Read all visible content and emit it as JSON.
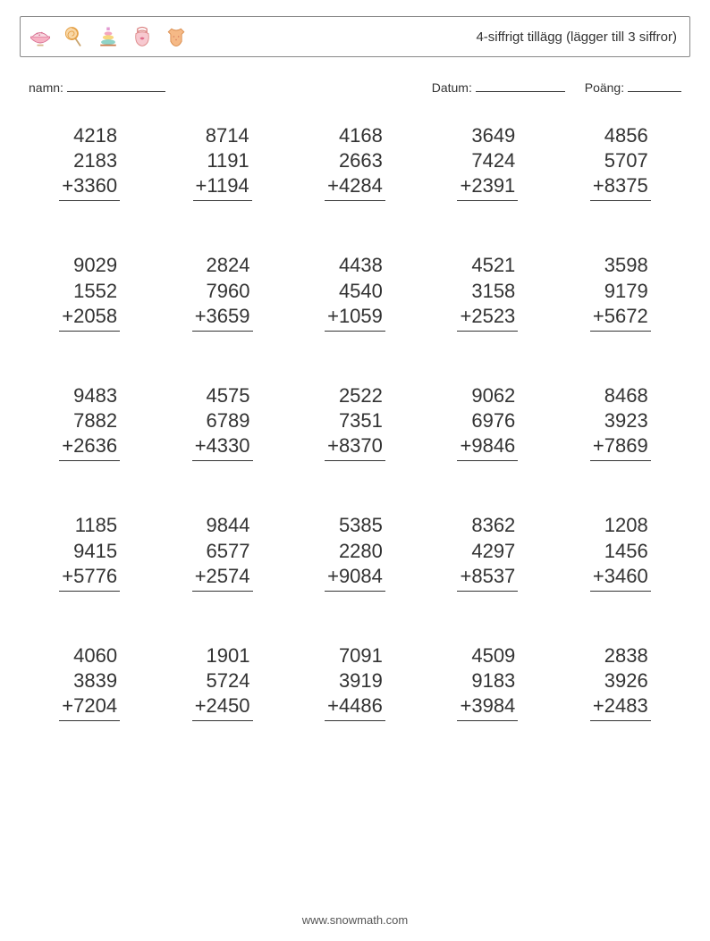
{
  "header": {
    "title": "4-siffrigt tillägg (lägger till 3 siffror)",
    "border_color": "#888888",
    "icon_names": [
      "bowl-icon",
      "lollipop-icon",
      "ring-stack-icon",
      "bib-icon",
      "onesie-icon"
    ]
  },
  "labels": {
    "name": "namn:",
    "date": "Datum:",
    "score": "Poäng:"
  },
  "operator": "+",
  "colors": {
    "text": "#333333",
    "background": "#ffffff",
    "rule": "#333333"
  },
  "typography": {
    "title_fontsize_pt": 11,
    "number_fontsize_pt": 17,
    "label_fontsize_pt": 10
  },
  "grid": {
    "rows": 5,
    "cols": 5
  },
  "problems": [
    {
      "a": 4218,
      "b": 2183,
      "c": 3360
    },
    {
      "a": 8714,
      "b": 1191,
      "c": 1194
    },
    {
      "a": 4168,
      "b": 2663,
      "c": 4284
    },
    {
      "a": 3649,
      "b": 7424,
      "c": 2391
    },
    {
      "a": 4856,
      "b": 5707,
      "c": 8375
    },
    {
      "a": 9029,
      "b": 1552,
      "c": 2058
    },
    {
      "a": 2824,
      "b": 7960,
      "c": 3659
    },
    {
      "a": 4438,
      "b": 4540,
      "c": 1059
    },
    {
      "a": 4521,
      "b": 3158,
      "c": 2523
    },
    {
      "a": 3598,
      "b": 9179,
      "c": 5672
    },
    {
      "a": 9483,
      "b": 7882,
      "c": 2636
    },
    {
      "a": 4575,
      "b": 6789,
      "c": 4330
    },
    {
      "a": 2522,
      "b": 7351,
      "c": 8370
    },
    {
      "a": 9062,
      "b": 6976,
      "c": 9846
    },
    {
      "a": 8468,
      "b": 3923,
      "c": 7869
    },
    {
      "a": 1185,
      "b": 9415,
      "c": 5776
    },
    {
      "a": 9844,
      "b": 6577,
      "c": 2574
    },
    {
      "a": 5385,
      "b": 2280,
      "c": 9084
    },
    {
      "a": 8362,
      "b": 4297,
      "c": 8537
    },
    {
      "a": 1208,
      "b": 1456,
      "c": 3460
    },
    {
      "a": 4060,
      "b": 3839,
      "c": 7204
    },
    {
      "a": 1901,
      "b": 5724,
      "c": 2450
    },
    {
      "a": 7091,
      "b": 3919,
      "c": 4486
    },
    {
      "a": 4509,
      "b": 9183,
      "c": 3984
    },
    {
      "a": 2838,
      "b": 3926,
      "c": 2483
    }
  ],
  "footer": "www.snowmath.com"
}
